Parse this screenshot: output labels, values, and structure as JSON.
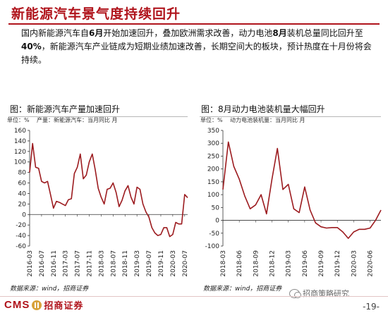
{
  "header": {
    "title": "新能源汽车景气度持续回升"
  },
  "summary": {
    "p1": "国内新能源汽车自",
    "b1": "6月",
    "p2": "开始加速回升，叠加欧洲需求改善，动力电池",
    "b2": "8月",
    "p3": "装机总量同比回升至",
    "b3": "40%",
    "p4": "，新能源汽车产业链成为短期业绩加速改善，长期空间大的板块，预计热度在十月份将会持续。"
  },
  "footer": {
    "brand_en": "CMS",
    "brand_cn": "招商证券",
    "watermark": "招商策略研究",
    "page_number": "-19-"
  },
  "colors": {
    "accent": "#b0141c",
    "line": "#9c1b1f",
    "panel_rule": "#b7b7b7"
  },
  "icons": {
    "logo": "cms-logo-icon",
    "wechat": "wechat-icon"
  },
  "chart_data": [
    {
      "type": "line",
      "title": "图：新能源汽车产量加速回升",
      "unit_label": "单位：%",
      "legend_label": "产量：新能源汽车：当月同比  月",
      "ylim": [
        -60,
        160
      ],
      "yticks": [
        -60,
        -40,
        -20,
        0,
        20,
        40,
        60,
        80,
        100,
        120,
        140,
        160
      ],
      "xticks": [
        "2016-03",
        "2016-07",
        "2016-11",
        "2017-03",
        "2017-07",
        "2017-11",
        "2018-03",
        "2018-07",
        "2018-11",
        "2019-03",
        "2019-07",
        "2019-11",
        "2020-03",
        "2020-07"
      ],
      "x": [
        "2016-03",
        "2016-04",
        "2016-05",
        "2016-06",
        "2016-07",
        "2016-08",
        "2016-09",
        "2016-10",
        "2016-11",
        "2016-12",
        "2017-01",
        "2017-02",
        "2017-03",
        "2017-04",
        "2017-05",
        "2017-06",
        "2017-07",
        "2017-08",
        "2017-09",
        "2017-10",
        "2017-11",
        "2017-12",
        "2018-01",
        "2018-02",
        "2018-03",
        "2018-04",
        "2018-05",
        "2018-06",
        "2018-07",
        "2018-08",
        "2018-09",
        "2018-10",
        "2018-11",
        "2018-12",
        "2019-01",
        "2019-02",
        "2019-03",
        "2019-04",
        "2019-05",
        "2019-06",
        "2019-07",
        "2019-08",
        "2019-09",
        "2019-10",
        "2019-11",
        "2019-12",
        "2020-01",
        "2020-02",
        "2020-03",
        "2020-04",
        "2020-05",
        "2020-06",
        "2020-07",
        "2020-08"
      ],
      "series": [
        {
          "values": [
            80,
            135,
            90,
            88,
            63,
            60,
            63,
            38,
            12,
            25,
            23,
            20,
            17,
            28,
            30,
            78,
            90,
            115,
            68,
            75,
            100,
            115,
            85,
            50,
            33,
            20,
            48,
            50,
            60,
            42,
            15,
            27,
            45,
            55,
            33,
            20,
            52,
            48,
            20,
            5,
            -5,
            -25,
            -35,
            -40,
            -38,
            -25,
            -25,
            -42,
            -38,
            -15,
            -18,
            -18,
            38,
            32
          ]
        }
      ]
    },
    {
      "type": "line",
      "title": "图：8月动力电池装机量大幅回升",
      "unit_label": "单位：%",
      "legend_label": "动力电池装机量：当月同比  月",
      "ylim": [
        -100,
        350
      ],
      "yticks": [
        -100,
        -50,
        0,
        50,
        100,
        150,
        200,
        250,
        300,
        350
      ],
      "xticks": [
        "2018-03",
        "2018-06",
        "2018-09",
        "2018-12",
        "2019-03",
        "2019-06",
        "2019-09",
        "2019-12",
        "2020-03",
        "2020-06"
      ],
      "x": [
        "2018-03",
        "2018-04",
        "2018-05",
        "2018-06",
        "2018-07",
        "2018-08",
        "2018-09",
        "2018-10",
        "2018-11",
        "2018-12",
        "2019-01",
        "2019-02",
        "2019-03",
        "2019-04",
        "2019-05",
        "2019-06",
        "2019-07",
        "2019-08",
        "2019-09",
        "2019-10",
        "2019-11",
        "2019-12",
        "2020-01",
        "2020-02",
        "2020-03",
        "2020-04",
        "2020-05",
        "2020-06",
        "2020-07",
        "2020-08"
      ],
      "series": [
        {
          "values": [
            120,
            305,
            210,
            160,
            95,
            45,
            60,
            100,
            25,
            160,
            280,
            120,
            140,
            45,
            30,
            130,
            40,
            -10,
            -25,
            -30,
            -28,
            -28,
            -45,
            -70,
            -45,
            -35,
            -35,
            -30,
            0,
            40
          ]
        }
      ]
    }
  ]
}
